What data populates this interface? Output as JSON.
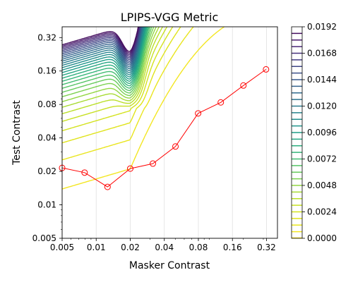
{
  "chart_data": {
    "type": "contour",
    "title": "LPIPS-VGG Metric",
    "xlabel": "Masker Contrast",
    "ylabel": "Test Contrast",
    "xscale": "log",
    "yscale": "log",
    "xlim": [
      0.005,
      0.4
    ],
    "ylim": [
      0.005,
      0.4
    ],
    "x_ticks": [
      0.005,
      0.01,
      0.02,
      0.04,
      0.08,
      0.16,
      0.32
    ],
    "x_tick_labels": [
      "0.005",
      "0.01",
      "0.02",
      "0.04",
      "0.08",
      "0.16",
      "0.32"
    ],
    "y_ticks": [
      0.005,
      0.01,
      0.02,
      0.04,
      0.08,
      0.16,
      0.32
    ],
    "y_tick_labels": [
      "0.005",
      "0.01",
      "0.02",
      "0.04",
      "0.08",
      "0.16",
      "0.32"
    ],
    "grid": "vertical-lines",
    "colormap": "viridis",
    "contour_levels": {
      "start": 0.0006,
      "step": 0.0006,
      "count": 31
    },
    "colorbar": {
      "min": 0.0,
      "max": 0.0192,
      "ticks": [
        0.0,
        0.0024,
        0.0048,
        0.0072,
        0.0096,
        0.012,
        0.0144,
        0.0168,
        0.0192
      ],
      "tick_labels": [
        "0.0000",
        "0.0024",
        "0.0048",
        "0.0072",
        "0.0096",
        "0.0120",
        "0.0144",
        "0.0168",
        "0.0192"
      ]
    },
    "threshold_curve": {
      "color": "#ff0000",
      "marker": "open-circle",
      "x": [
        0.005,
        0.0079,
        0.0126,
        0.02,
        0.0317,
        0.0502,
        0.0796,
        0.1262,
        0.2,
        0.317
      ],
      "y": [
        0.0215,
        0.0195,
        0.0145,
        0.0212,
        0.0235,
        0.0335,
        0.0665,
        0.0835,
        0.1185,
        0.1655
      ]
    }
  }
}
